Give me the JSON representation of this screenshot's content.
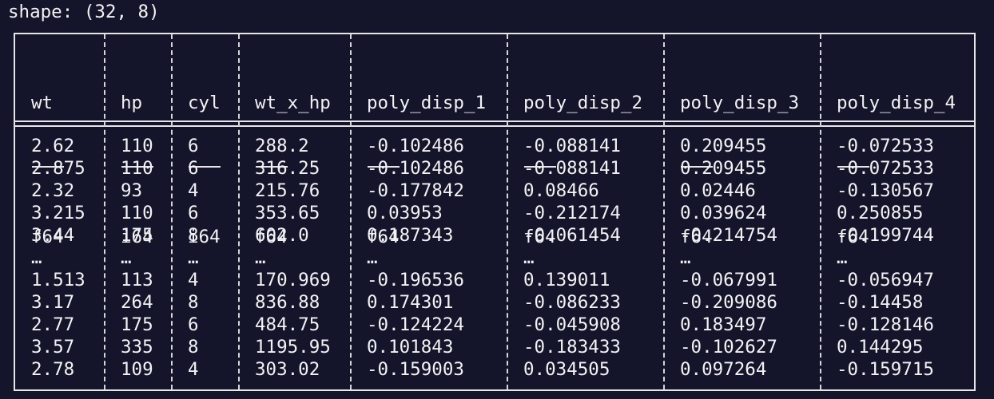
{
  "shape_label": "shape: (32, 8)",
  "columns": [
    {
      "name": "wt",
      "dtype": "f64",
      "sep": "---"
    },
    {
      "name": "hp",
      "dtype": "i64",
      "sep": "---"
    },
    {
      "name": "cyl",
      "dtype": "i64",
      "sep": "---"
    },
    {
      "name": "wt_x_hp",
      "dtype": "f64",
      "sep": "---"
    },
    {
      "name": "poly_disp_1",
      "dtype": "f64",
      "sep": "---"
    },
    {
      "name": "poly_disp_2",
      "dtype": "f64",
      "sep": "---"
    },
    {
      "name": "poly_disp_3",
      "dtype": "f64",
      "sep": "---"
    },
    {
      "name": "poly_disp_4",
      "dtype": "f64",
      "sep": "---"
    }
  ],
  "rows": [
    [
      "2.62",
      "110",
      "6",
      "288.2",
      "-0.102486",
      "-0.088141",
      "0.209455",
      "-0.072533"
    ],
    [
      "2.875",
      "110",
      "6",
      "316.25",
      "-0.102486",
      "-0.088141",
      "0.209455",
      "-0.072533"
    ],
    [
      "2.32",
      "93",
      "4",
      "215.76",
      "-0.177842",
      "0.08466",
      "0.02446",
      "-0.130567"
    ],
    [
      "3.215",
      "110",
      "6",
      "353.65",
      "0.03953",
      "-0.212174",
      "0.039624",
      "0.250855"
    ],
    [
      "3.44",
      "175",
      "8",
      "602.0",
      "0.187343",
      "-0.061454",
      "-0.214754",
      "-0.199744"
    ],
    [
      "…",
      "…",
      "…",
      "…",
      "…",
      "…",
      "…",
      "…"
    ],
    [
      "1.513",
      "113",
      "4",
      "170.969",
      "-0.196536",
      "0.139011",
      "-0.067991",
      "-0.056947"
    ],
    [
      "3.17",
      "264",
      "8",
      "836.88",
      "0.174301",
      "-0.086233",
      "-0.209086",
      "-0.14458"
    ],
    [
      "2.77",
      "175",
      "6",
      "484.75",
      "-0.124224",
      "-0.045908",
      "0.183497",
      "-0.128146"
    ],
    [
      "3.57",
      "335",
      "8",
      "1195.95",
      "0.101843",
      "-0.183433",
      "-0.102627",
      "0.144295"
    ],
    [
      "2.78",
      "109",
      "4",
      "303.02",
      "-0.159003",
      "0.034505",
      "0.097264",
      "-0.159715"
    ]
  ]
}
